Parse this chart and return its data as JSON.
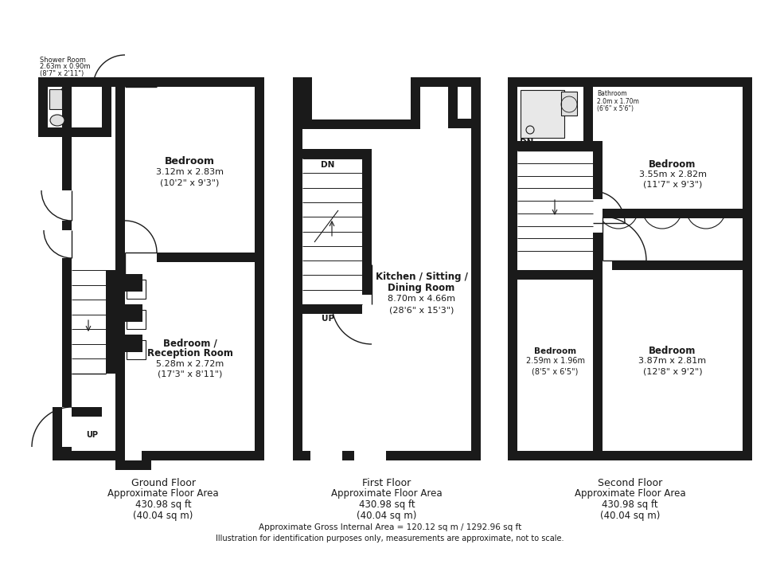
{
  "bg": "#ffffff",
  "wc": "#1a1a1a",
  "footer1": "Approximate Gross Internal Area = 120.12 sq m / 1292.96 sq ft",
  "footer2": "Illustration for identification purposes only, measurements are approximate, not to scale.",
  "gf_room1": [
    "Bedroom",
    "3.12m x 2.83m",
    "(10'2\" x 9'3\")"
  ],
  "gf_room2": [
    "Bedroom /",
    "Reception Room",
    "5.28m x 2.72m",
    "(17'3\" x 8'11\")"
  ],
  "ff_room1": [
    "Kitchen / Sitting /",
    "Dining Room",
    "8.70m x 4.66m",
    "(28'6\" x 15'3\")"
  ],
  "sf_room1": [
    "Bedroom",
    "3.55m x 2.82m",
    "(11'7\" x 9'3\")"
  ],
  "sf_room2": [
    "Bedroom",
    "2.59m x 1.96m",
    "(8'5\" x 6'5\")"
  ],
  "sf_room3": [
    "Bedroom",
    "3.87m x 2.81m",
    "(12'8\" x 9'2\")"
  ],
  "shower_ann": [
    "Shower Room",
    "2.63m x 0.90m",
    "(8'7\" x 2'11\")"
  ],
  "bath_ann": [
    "Bathroom",
    "2.0m x 1.70m",
    "(6'6\" x 5'6\")"
  ],
  "floor_labels": [
    "Ground Floor",
    "First Floor",
    "Second Floor"
  ],
  "floor_area1": "Approximate Floor Area",
  "floor_area2": "430.98 sq ft",
  "floor_area3": "(40.04 sq m)"
}
